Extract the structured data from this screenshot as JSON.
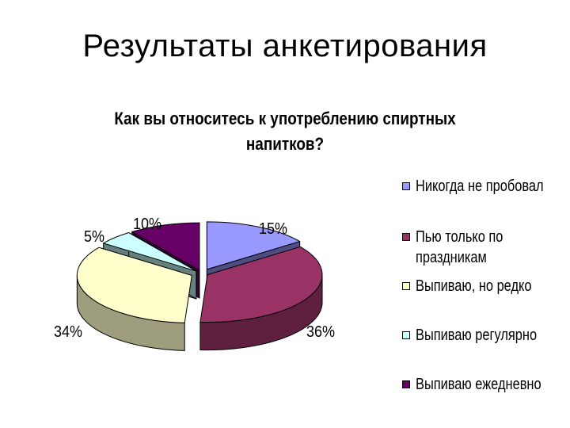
{
  "slide": {
    "title": "Результаты анкетирования"
  },
  "chart_data": {
    "type": "pie",
    "title_line1": "Как вы относитесь к употреблению спиртных",
    "title_line2": "напитков?",
    "categories": [
      "Никогда не пробовал",
      "Пью только по праздникам",
      "Выпиваю, но редко",
      "Выпиваю регулярно",
      "Выпиваю ежедневно"
    ],
    "values": [
      15,
      36,
      34,
      5,
      10
    ],
    "value_labels": [
      "15%",
      "36%",
      "34%",
      "5%",
      "10%"
    ],
    "legend_labels": [
      [
        "Никогда не пробовал"
      ],
      [
        "Пью только по",
        "праздникам"
      ],
      [
        "Выпиваю, но редко"
      ],
      [
        "Выпиваю регулярно"
      ],
      [
        "Выпиваю ежедневно"
      ]
    ],
    "colors": [
      "#9999ff",
      "#993366",
      "#ffffcc",
      "#ccffff",
      "#660066"
    ],
    "legend_position": "right",
    "style": "3d-exploded"
  }
}
